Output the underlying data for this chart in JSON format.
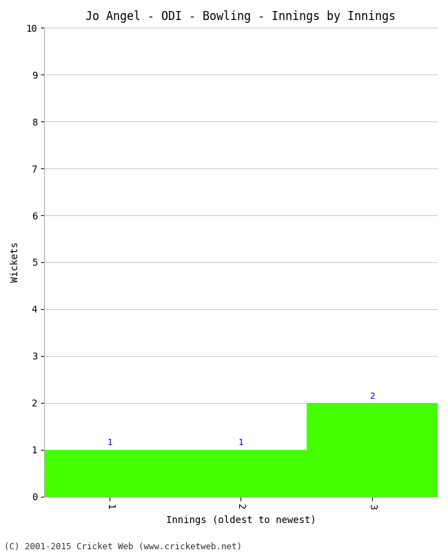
{
  "title": "Jo Angel - ODI - Bowling - Innings by Innings",
  "xlabel": "Innings (oldest to newest)",
  "ylabel": "Wickets",
  "bar_values": [
    1,
    1,
    2
  ],
  "bar_positions": [
    1,
    2,
    3
  ],
  "bar_color": "#44ff00",
  "bar_width": 1.0,
  "ylim": [
    0,
    10
  ],
  "yticks": [
    0,
    1,
    2,
    3,
    4,
    5,
    6,
    7,
    8,
    9,
    10
  ],
  "xticks": [
    1,
    2,
    3
  ],
  "xticklabels": [
    "1",
    "2",
    "3"
  ],
  "label_color": "#0000cc",
  "background_color": "#ffffff",
  "grid_color": "#cccccc",
  "footer": "(C) 2001-2015 Cricket Web (www.cricketweb.net)",
  "title_fontsize": 12,
  "axis_fontsize": 10,
  "tick_fontsize": 10,
  "label_fontsize": 9,
  "footer_fontsize": 9,
  "xlim_left": 0.5,
  "xlim_right": 3.5
}
